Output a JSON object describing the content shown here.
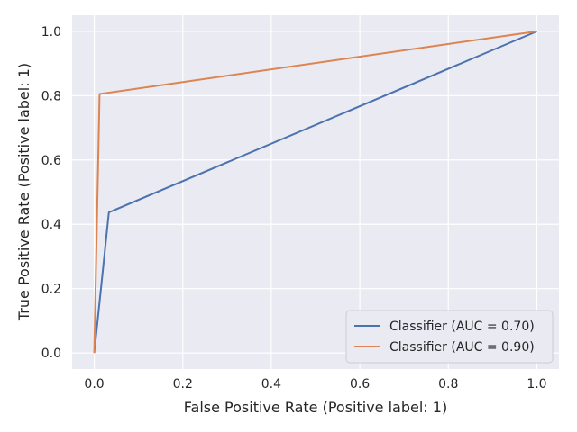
{
  "chart_data": {
    "type": "line",
    "title": "",
    "xlabel": "False Positive Rate (Positive label: 1)",
    "ylabel": "True Positive Rate (Positive label: 1)",
    "xlim": [
      -0.05,
      1.05
    ],
    "ylim": [
      -0.05,
      1.05
    ],
    "xticks": [
      "0.0",
      "0.2",
      "0.4",
      "0.6",
      "0.8",
      "1.0"
    ],
    "yticks": [
      "0.0",
      "0.2",
      "0.4",
      "0.6",
      "0.8",
      "1.0"
    ],
    "grid": true,
    "background": "#EAEAF2",
    "legend_position": "lower-right",
    "series": [
      {
        "name": "Classifier (AUC = 0.70)",
        "color": "#4C72B0",
        "x": [
          0.0,
          0.033,
          1.0
        ],
        "y": [
          0.0,
          0.437,
          1.0
        ]
      },
      {
        "name": "Classifier (AUC = 0.90)",
        "color": "#DD8452",
        "x": [
          0.0,
          0.012,
          1.0
        ],
        "y": [
          0.0,
          0.805,
          1.0
        ]
      }
    ]
  }
}
